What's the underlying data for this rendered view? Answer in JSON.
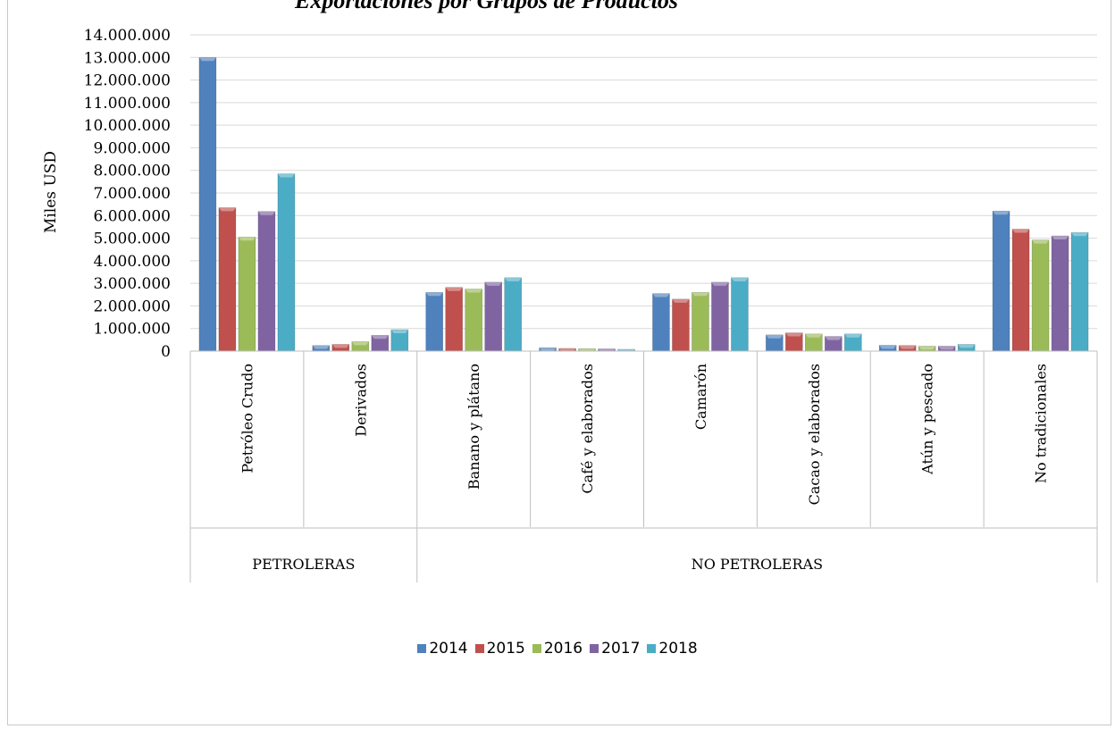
{
  "chart_data": {
    "type": "bar",
    "title": "Exportaciones por Grupos de Productos",
    "ylabel": "Miles USD",
    "xlabel": "",
    "ylim": [
      0,
      14000000
    ],
    "yticks": [
      "0",
      "1.000.000",
      "2.000.000",
      "3.000.000",
      "4.000.000",
      "5.000.000",
      "6.000.000",
      "7.000.000",
      "8.000.000",
      "9.000.000",
      "10.000.000",
      "11.000.000",
      "12.000.000",
      "13.000.000",
      "14.000.000"
    ],
    "grid": true,
    "legend_position": "bottom",
    "categories": [
      "Petróleo Crudo",
      "Derivados",
      "Banano y plátano",
      "Café y elaborados",
      "Camarón",
      "Cacao y elaborados",
      "Atún y pescado",
      "No tradicionales"
    ],
    "groups": [
      {
        "label": "PETROLERAS",
        "categories": [
          "Petróleo Crudo",
          "Derivados"
        ]
      },
      {
        "label": "NO PETROLERAS",
        "categories": [
          "Banano y plátano",
          "Café y elaborados",
          "Camarón",
          "Cacao y elaborados",
          "Atún y pescado",
          "No tradicionales"
        ]
      }
    ],
    "series": [
      {
        "name": "2014",
        "color": "#4f81bd",
        "values": [
          13000000,
          250000,
          2600000,
          150000,
          2550000,
          720000,
          260000,
          6200000
        ]
      },
      {
        "name": "2015",
        "color": "#c0504d",
        "values": [
          6350000,
          300000,
          2820000,
          120000,
          2300000,
          810000,
          250000,
          5400000
        ]
      },
      {
        "name": "2016",
        "color": "#9bbb59",
        "values": [
          5050000,
          420000,
          2750000,
          110000,
          2600000,
          760000,
          220000,
          4920000
        ]
      },
      {
        "name": "2017",
        "color": "#8064a2",
        "values": [
          6180000,
          700000,
          3050000,
          100000,
          3050000,
          650000,
          220000,
          5100000
        ]
      },
      {
        "name": "2018",
        "color": "#4bacc6",
        "values": [
          7850000,
          950000,
          3250000,
          80000,
          3250000,
          760000,
          300000,
          5250000
        ]
      }
    ]
  }
}
